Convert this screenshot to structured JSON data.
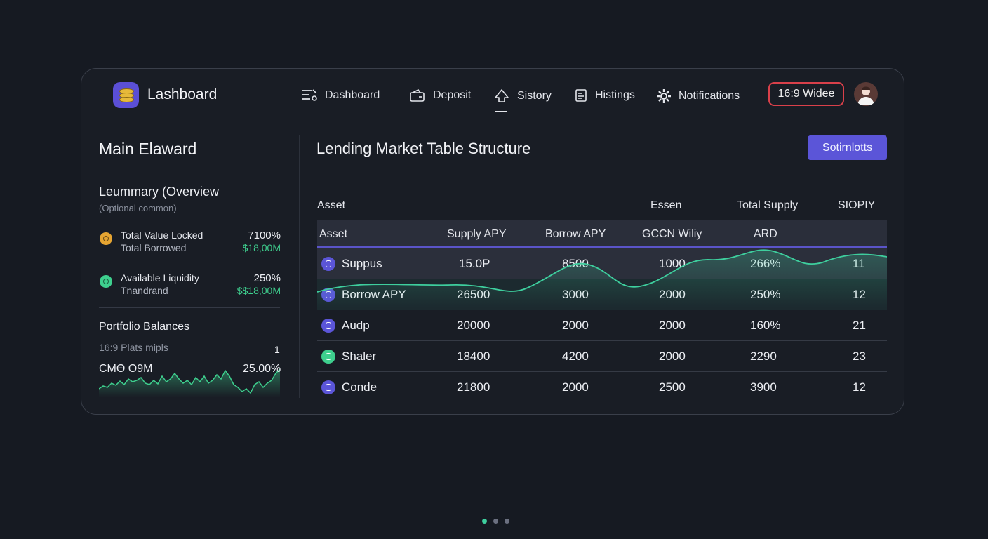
{
  "header": {
    "brand": "Lashboard",
    "nav": [
      {
        "label": "Dashboard",
        "icon": "list-icon"
      },
      {
        "label": "Deposit",
        "icon": "wallet-icon"
      },
      {
        "label": "Sistory",
        "icon": "upload-icon"
      },
      {
        "label": "Histings",
        "icon": "document-icon"
      },
      {
        "label": "Notifications",
        "icon": "gear-icon"
      }
    ],
    "badge": "16:9 Widee"
  },
  "left": {
    "title": "Main Elaward",
    "summary_title": "Leummary (Overview",
    "summary_note": "(Optional common)",
    "stats": [
      {
        "label": "Total Value Locked",
        "sub": "Total Borrowed",
        "value": "7100%",
        "money": "$18,00M",
        "icon_color": "#e6a532"
      },
      {
        "label": "Available Liquidity",
        "sub": "Tnandrand",
        "value": "250%",
        "money": "$$18,00M",
        "icon_color": "#3ecf8e"
      }
    ],
    "portfolio": {
      "title": "Portfolio Balances",
      "subtitle": "16:9 Plats mipls",
      "count": "1",
      "amount": "CMΘ O9M",
      "percent": "25.00%"
    }
  },
  "main": {
    "title": "Lending Market Table Structure",
    "button": "Sotirnlotts",
    "top_headers": [
      "Asset",
      "Essen",
      "Total Supply",
      "SIOPIY"
    ],
    "columns": [
      "Asset",
      "Supply APY",
      "Borrow APY",
      "GCCN Wiliy",
      "ARD"
    ],
    "rows": [
      {
        "asset": "Suppus",
        "c1": "15.0P",
        "c2": "8500",
        "c3": "1000",
        "c4": "266%",
        "c5": "11",
        "icon_color": "#5b55d8"
      },
      {
        "asset": "Borrow APY",
        "c1": "26500",
        "c2": "3000",
        "c3": "2000",
        "c4": "250%",
        "c5": "12",
        "icon_color": "#5b55d8"
      },
      {
        "asset": "Audp",
        "c1": "20000",
        "c2": "2000",
        "c3": "2000",
        "c4": "160%",
        "c5": "21",
        "icon_color": "#5b55d8"
      },
      {
        "asset": "Shaler",
        "c1": "18400",
        "c2": "4200",
        "c3": "2000",
        "c4": "2290",
        "c5": "23",
        "icon_color": "#3ecf8e"
      },
      {
        "asset": "Conde",
        "c1": "21800",
        "c2": "2000",
        "c3": "2500",
        "c4": "3900",
        "c5": "12",
        "icon_color": "#5b55d8"
      }
    ]
  },
  "colors": {
    "accent": "#5b55d8",
    "positive": "#3ecf8e",
    "alert": "#d9404a"
  },
  "pager": {
    "count": 3,
    "active": 0
  }
}
